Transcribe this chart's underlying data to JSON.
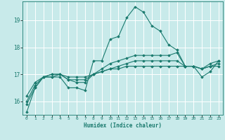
{
  "title": "",
  "xlabel": "Humidex (Indice chaleur)",
  "ylabel": "",
  "background_color": "#c8eaea",
  "grid_color": "#ffffff",
  "line_color": "#1a7a6e",
  "xlim": [
    -0.5,
    23.5
  ],
  "ylim": [
    15.5,
    19.7
  ],
  "yticks": [
    16,
    17,
    18,
    19
  ],
  "xticks": [
    0,
    1,
    2,
    3,
    4,
    5,
    6,
    7,
    8,
    9,
    10,
    11,
    12,
    13,
    14,
    15,
    16,
    17,
    18,
    19,
    20,
    21,
    22,
    23
  ],
  "series": [
    [
      15.6,
      16.5,
      16.9,
      16.9,
      16.9,
      16.5,
      16.5,
      16.4,
      17.5,
      17.5,
      18.3,
      18.4,
      19.1,
      19.5,
      19.3,
      18.8,
      18.6,
      18.1,
      17.9,
      17.3,
      17.3,
      16.9,
      17.1,
      17.5
    ],
    [
      15.9,
      16.5,
      16.9,
      16.9,
      17.0,
      16.8,
      16.7,
      16.7,
      17.0,
      17.2,
      17.4,
      17.5,
      17.6,
      17.7,
      17.7,
      17.7,
      17.7,
      17.7,
      17.8,
      17.3,
      17.3,
      17.2,
      17.4,
      17.5
    ],
    [
      16.0,
      16.6,
      16.9,
      17.0,
      17.0,
      16.8,
      16.8,
      16.8,
      17.0,
      17.1,
      17.2,
      17.3,
      17.4,
      17.5,
      17.5,
      17.5,
      17.5,
      17.5,
      17.5,
      17.3,
      17.3,
      17.2,
      17.3,
      17.4
    ],
    [
      16.2,
      16.7,
      16.9,
      17.0,
      17.0,
      16.9,
      16.9,
      16.9,
      17.0,
      17.1,
      17.2,
      17.2,
      17.3,
      17.3,
      17.3,
      17.3,
      17.3,
      17.3,
      17.3,
      17.3,
      17.3,
      17.2,
      17.3,
      17.3
    ]
  ]
}
